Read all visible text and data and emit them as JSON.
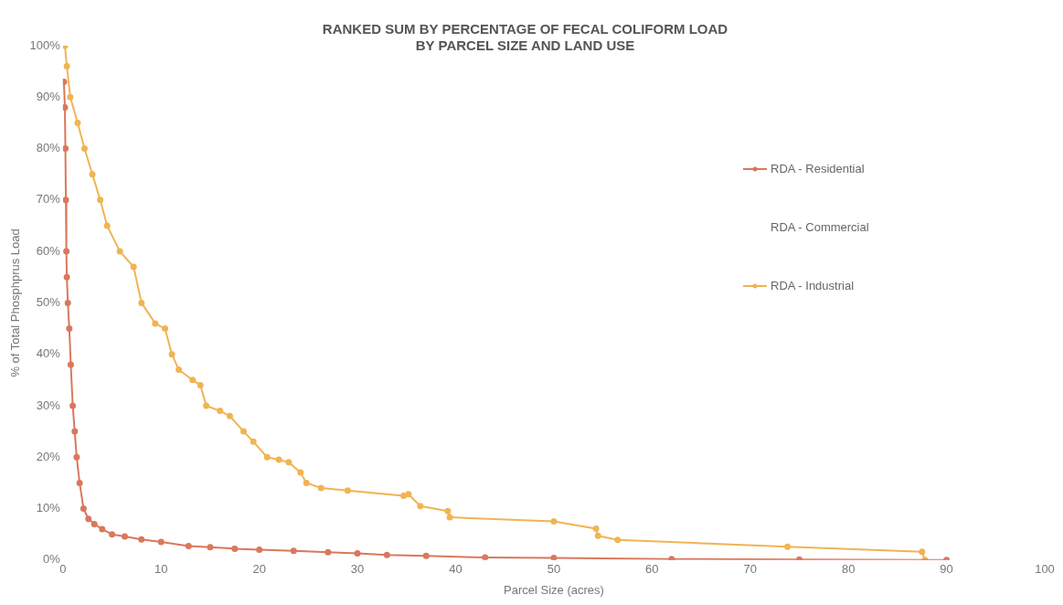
{
  "chart_data": {
    "type": "line",
    "title": [
      "RANKED SUM BY PERCENTAGE OF FECAL COLIFORM LOAD",
      "BY PARCEL SIZE AND LAND USE"
    ],
    "xlabel": "Parcel Size (acres)",
    "ylabel": "% of Total Phosphprus Load",
    "xlim": [
      0,
      100
    ],
    "xticks": [
      0,
      10,
      20,
      30,
      40,
      50,
      60,
      70,
      80,
      90,
      100
    ],
    "ylim": [
      0,
      100
    ],
    "yticks": [
      {
        "value": 0,
        "label": "0%"
      },
      {
        "value": 10,
        "label": "10%"
      },
      {
        "value": 20,
        "label": "20%"
      },
      {
        "value": 30,
        "label": "30%"
      },
      {
        "value": 40,
        "label": "40%"
      },
      {
        "value": 50,
        "label": "50%"
      },
      {
        "value": 60,
        "label": "60%"
      },
      {
        "value": 70,
        "label": "70%"
      },
      {
        "value": 80,
        "label": "80%"
      },
      {
        "value": 90,
        "label": "90%"
      },
      {
        "value": 100,
        "label": "100%"
      }
    ],
    "grid": false,
    "legend": "top right",
    "marker": "circle",
    "line_style": "solid",
    "series": [
      {
        "name": "RDA - Residential",
        "color": "#d9785c",
        "x": [
          0.1,
          0.2,
          0.25,
          0.3,
          0.35,
          0.4,
          0.5,
          0.65,
          0.8,
          1.0,
          1.2,
          1.4,
          1.7,
          2.1,
          2.6,
          3.2,
          4.0,
          5.0,
          6.3,
          8.0,
          10.0,
          12.8,
          15,
          17.5,
          20,
          23.5,
          27,
          30,
          33,
          37,
          43,
          50,
          62,
          75,
          90
        ],
        "values": [
          93,
          88,
          80,
          70,
          60,
          55,
          50,
          45,
          38,
          30,
          25,
          20,
          15,
          10,
          8,
          7,
          6,
          5,
          4.6,
          4,
          3.5,
          2.7,
          2.5,
          2.2,
          2,
          1.8,
          1.5,
          1.3,
          1,
          0.8,
          0.5,
          0.4,
          0.2,
          0.1,
          0
        ]
      },
      {
        "name": "RDA - Commercial"
      },
      {
        "name": "RDA - Industrial",
        "color": "#f0b454",
        "x": [
          0.2,
          0.4,
          0.75,
          1.5,
          2.2,
          3.0,
          3.8,
          4.5,
          5.8,
          7.2,
          8.0,
          9.4,
          10.4,
          11.1,
          11.8,
          13.2,
          14,
          14.6,
          16,
          17,
          18.4,
          19.4,
          20.8,
          22,
          23,
          24.2,
          24.8,
          26.3,
          29,
          34.7,
          35.2,
          36.4,
          39.2,
          39.4,
          50,
          54.3,
          54.5,
          56.5,
          73.8,
          87.5,
          87.8
        ],
        "values": [
          100,
          96,
          90,
          85,
          80,
          75,
          70,
          65,
          60,
          57,
          50,
          46,
          45,
          40,
          37,
          35,
          34,
          30,
          29,
          28,
          25,
          23,
          20,
          19.5,
          19,
          17,
          15,
          14,
          13.5,
          12.5,
          12.8,
          10.5,
          9.5,
          8.3,
          7.5,
          6.1,
          4.7,
          3.9,
          2.6,
          1.6,
          0
        ]
      }
    ]
  }
}
